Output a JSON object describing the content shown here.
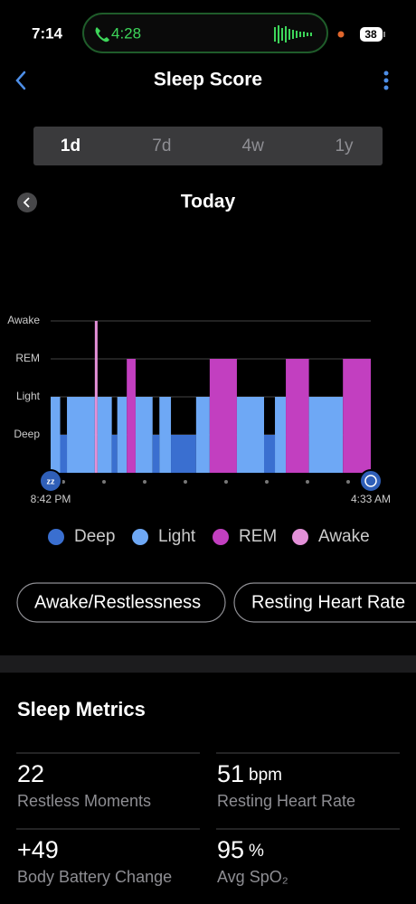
{
  "status_bar": {
    "time": "7:14",
    "call_time": "4:28",
    "battery": "38"
  },
  "header": {
    "title": "Sleep Score"
  },
  "tabs": {
    "items": [
      "1d",
      "7d",
      "4w",
      "1y"
    ],
    "selected": 0
  },
  "date": "Today",
  "sleep_chart": {
    "levels": [
      "Awake",
      "REM",
      "Light",
      "Deep"
    ],
    "start_label": "8:42 PM",
    "end_label": "4:33 AM",
    "duration_min": 471,
    "segments": [
      {
        "stage": "Light",
        "start": 0,
        "end": 14
      },
      {
        "stage": "Deep",
        "start": 14,
        "end": 24
      },
      {
        "stage": "Light",
        "start": 24,
        "end": 65
      },
      {
        "stage": "Awake",
        "start": 65,
        "end": 69
      },
      {
        "stage": "Light",
        "start": 69,
        "end": 90
      },
      {
        "stage": "Deep",
        "start": 90,
        "end": 98
      },
      {
        "stage": "Light",
        "start": 98,
        "end": 112
      },
      {
        "stage": "REM",
        "start": 112,
        "end": 125
      },
      {
        "stage": "Light",
        "start": 125,
        "end": 150
      },
      {
        "stage": "Deep",
        "start": 150,
        "end": 160
      },
      {
        "stage": "Light",
        "start": 160,
        "end": 177
      },
      {
        "stage": "Deep",
        "start": 177,
        "end": 214
      },
      {
        "stage": "Light",
        "start": 214,
        "end": 234
      },
      {
        "stage": "REM",
        "start": 234,
        "end": 274
      },
      {
        "stage": "Light",
        "start": 274,
        "end": 314
      },
      {
        "stage": "Deep",
        "start": 314,
        "end": 330
      },
      {
        "stage": "Light",
        "start": 330,
        "end": 346
      },
      {
        "stage": "REM",
        "start": 346,
        "end": 380
      },
      {
        "stage": "Light",
        "start": 380,
        "end": 430
      },
      {
        "stage": "REM",
        "start": 430,
        "end": 471
      }
    ],
    "legend": [
      {
        "name": "Deep",
        "color": "#3a6fd0"
      },
      {
        "name": "Light",
        "color": "#6ea8f5"
      },
      {
        "name": "REM",
        "color": "#c23fc0"
      },
      {
        "name": "Awake",
        "color": "#e390d8"
      }
    ]
  },
  "buttons": [
    "Awake/Restlessness",
    "Resting Heart Rate"
  ],
  "metrics": {
    "title": "Sleep Metrics",
    "items": [
      {
        "value": "22",
        "label": "Restless Moments"
      },
      {
        "value": "51",
        "unit": "bpm",
        "label": "Resting Heart Rate"
      },
      {
        "value": "+49",
        "label": "Body Battery Change"
      },
      {
        "value": "95",
        "unit": "%",
        "label": "Avg SpO₂"
      }
    ]
  }
}
